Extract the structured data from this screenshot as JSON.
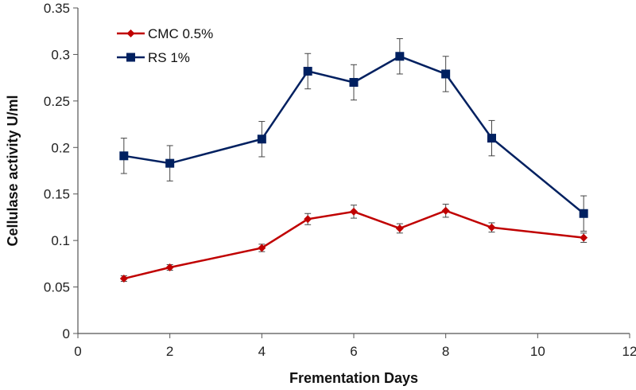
{
  "chart_data": {
    "type": "line",
    "title": "",
    "xlabel": "Frementation Days",
    "ylabel": "Cellulase activity U/ml",
    "xlim": [
      0,
      12
    ],
    "ylim": [
      0,
      0.35
    ],
    "xticks": [
      0,
      2,
      4,
      6,
      8,
      10,
      12
    ],
    "yticks": [
      0,
      0.05,
      0.1,
      0.15,
      0.2,
      0.25,
      0.3,
      0.35
    ],
    "ytick_labels": [
      "0",
      "0.05",
      "0.1",
      "0.15",
      "0.2",
      "0.25",
      "0.3",
      "0.35"
    ],
    "grid": false,
    "legend_position": "top-left",
    "series": [
      {
        "name": "CMC 0.5%",
        "color": "#c00000",
        "marker": "diamond",
        "x": [
          1,
          2,
          4,
          5,
          6,
          7,
          8,
          9,
          11
        ],
        "y": [
          0.059,
          0.071,
          0.092,
          0.123,
          0.131,
          0.113,
          0.132,
          0.114,
          0.103
        ],
        "error": [
          0.003,
          0.003,
          0.004,
          0.006,
          0.007,
          0.005,
          0.007,
          0.005,
          0.005
        ]
      },
      {
        "name": "RS 1%",
        "color": "#002060",
        "marker": "square",
        "x": [
          1,
          2,
          4,
          5,
          6,
          7,
          8,
          9,
          11
        ],
        "y": [
          0.191,
          0.183,
          0.209,
          0.282,
          0.27,
          0.298,
          0.279,
          0.21,
          0.129
        ],
        "error": [
          0.019,
          0.019,
          0.019,
          0.019,
          0.019,
          0.019,
          0.019,
          0.019,
          0.019
        ]
      }
    ]
  }
}
